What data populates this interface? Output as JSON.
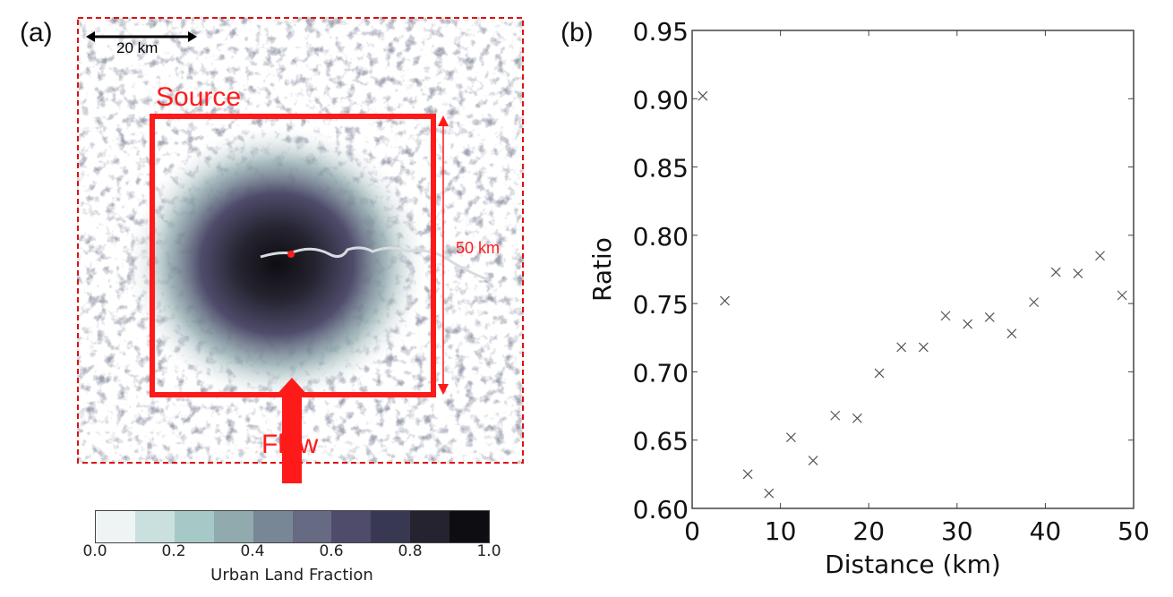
{
  "panel_a": {
    "label": "(a)",
    "map_annotations": {
      "scale_bar_label": "20 km",
      "source_label": "Source",
      "source_box_size_label": "50 km",
      "flow_label": "Flow"
    },
    "colorbar": {
      "title": "Urban Land Fraction",
      "ticks": [
        "0.0",
        "0.2",
        "0.4",
        "0.6",
        "0.8",
        "1.0"
      ],
      "colors": [
        "#eef4f3",
        "#c9e0de",
        "#a6c9c8",
        "#90aaae",
        "#788796",
        "#666a82",
        "#4f4c6b",
        "#393852",
        "#24232f",
        "#0e0d12"
      ]
    },
    "accent_color": "#ff0000"
  },
  "panel_b": {
    "label": "(b)"
  },
  "chart_data": {
    "type": "scatter",
    "title": "",
    "xlabel": "Distance (km)",
    "ylabel": "Ratio",
    "xlim": [
      0,
      50
    ],
    "ylim": [
      0.6,
      0.95
    ],
    "xticks": [
      "0",
      "10",
      "20",
      "30",
      "40",
      "50"
    ],
    "yticks": [
      "0.60",
      "0.65",
      "0.70",
      "0.75",
      "0.80",
      "0.85",
      "0.90",
      "0.95"
    ],
    "grid": false,
    "marker": "x",
    "series": [
      {
        "name": "Ratio",
        "x": [
          1.2,
          3.7,
          6.3,
          8.7,
          11.2,
          13.7,
          16.2,
          18.7,
          21.2,
          23.7,
          26.2,
          28.7,
          31.2,
          33.7,
          36.2,
          38.7,
          41.2,
          43.7,
          46.2,
          48.7
        ],
        "y": [
          0.902,
          0.752,
          0.625,
          0.611,
          0.652,
          0.635,
          0.668,
          0.666,
          0.699,
          0.718,
          0.718,
          0.741,
          0.735,
          0.74,
          0.728,
          0.751,
          0.773,
          0.772,
          0.785,
          0.756
        ]
      }
    ]
  }
}
